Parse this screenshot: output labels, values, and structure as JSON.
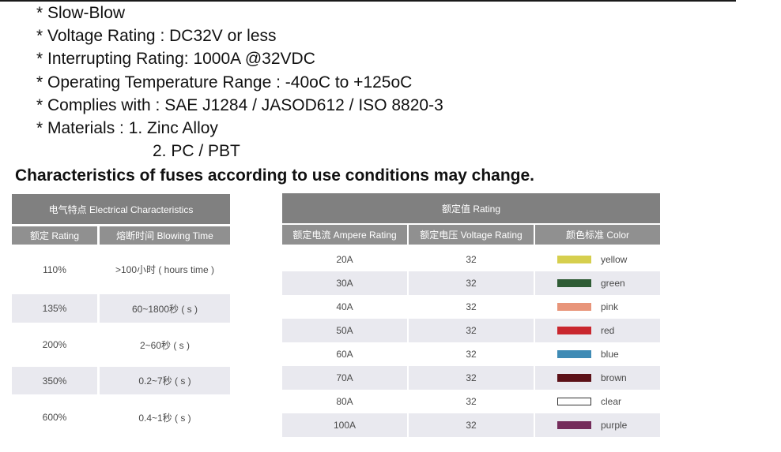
{
  "specs": [
    "* Slow-Blow",
    "* Voltage Rating : DC32V or less",
    "* Interrupting Rating: 1000A @32VDC",
    "* Operating Temperature Range : -40oC to +125oC",
    "* Complies with : SAE J1284 / JASOD612 / ISO 8820-3",
    "* Materials : 1. Zinc Alloy"
  ],
  "specs_continuation": "2. PC / PBT",
  "heading": "Characteristics of fuses according to use conditions may change.",
  "electrical": {
    "title": "电气特点 Electrical Characteristics",
    "col_rating": "额定 Rating",
    "col_blowing": "熔断时间 Blowing Time",
    "rows": [
      {
        "rating": "110%",
        "time": ">100小时 ( hours time )"
      },
      {
        "rating": "135%",
        "time": "60~1800秒 ( s )"
      },
      {
        "rating": "200%",
        "time": "2~60秒 ( s )"
      },
      {
        "rating": "350%",
        "time": "0.2~7秒 ( s )"
      },
      {
        "rating": "600%",
        "time": "0.4~1秒 ( s )"
      }
    ]
  },
  "rating": {
    "title": "额定值 Rating",
    "col_ampere": "额定电流 Ampere Rating",
    "col_voltage": "额定电压 Voltage Rating",
    "col_color": "颜色标准  Color",
    "rows": [
      {
        "ampere": "20A",
        "voltage": "32",
        "color": "yellow",
        "hex": "#d6cf4e"
      },
      {
        "ampere": "30A",
        "voltage": "32",
        "color": "green",
        "hex": "#2f5c35"
      },
      {
        "ampere": "40A",
        "voltage": "32",
        "color": "pink",
        "hex": "#e8957a"
      },
      {
        "ampere": "50A",
        "voltage": "32",
        "color": "red",
        "hex": "#c9272e"
      },
      {
        "ampere": "60A",
        "voltage": "32",
        "color": "blue",
        "hex": "#3f8bb5"
      },
      {
        "ampere": "70A",
        "voltage": "32",
        "color": "brown",
        "hex": "#5c1118"
      },
      {
        "ampere": "80A",
        "voltage": "32",
        "color": "clear",
        "hex": "#ffffff"
      },
      {
        "ampere": "100A",
        "voltage": "32",
        "color": "purple",
        "hex": "#742c5b"
      }
    ]
  }
}
